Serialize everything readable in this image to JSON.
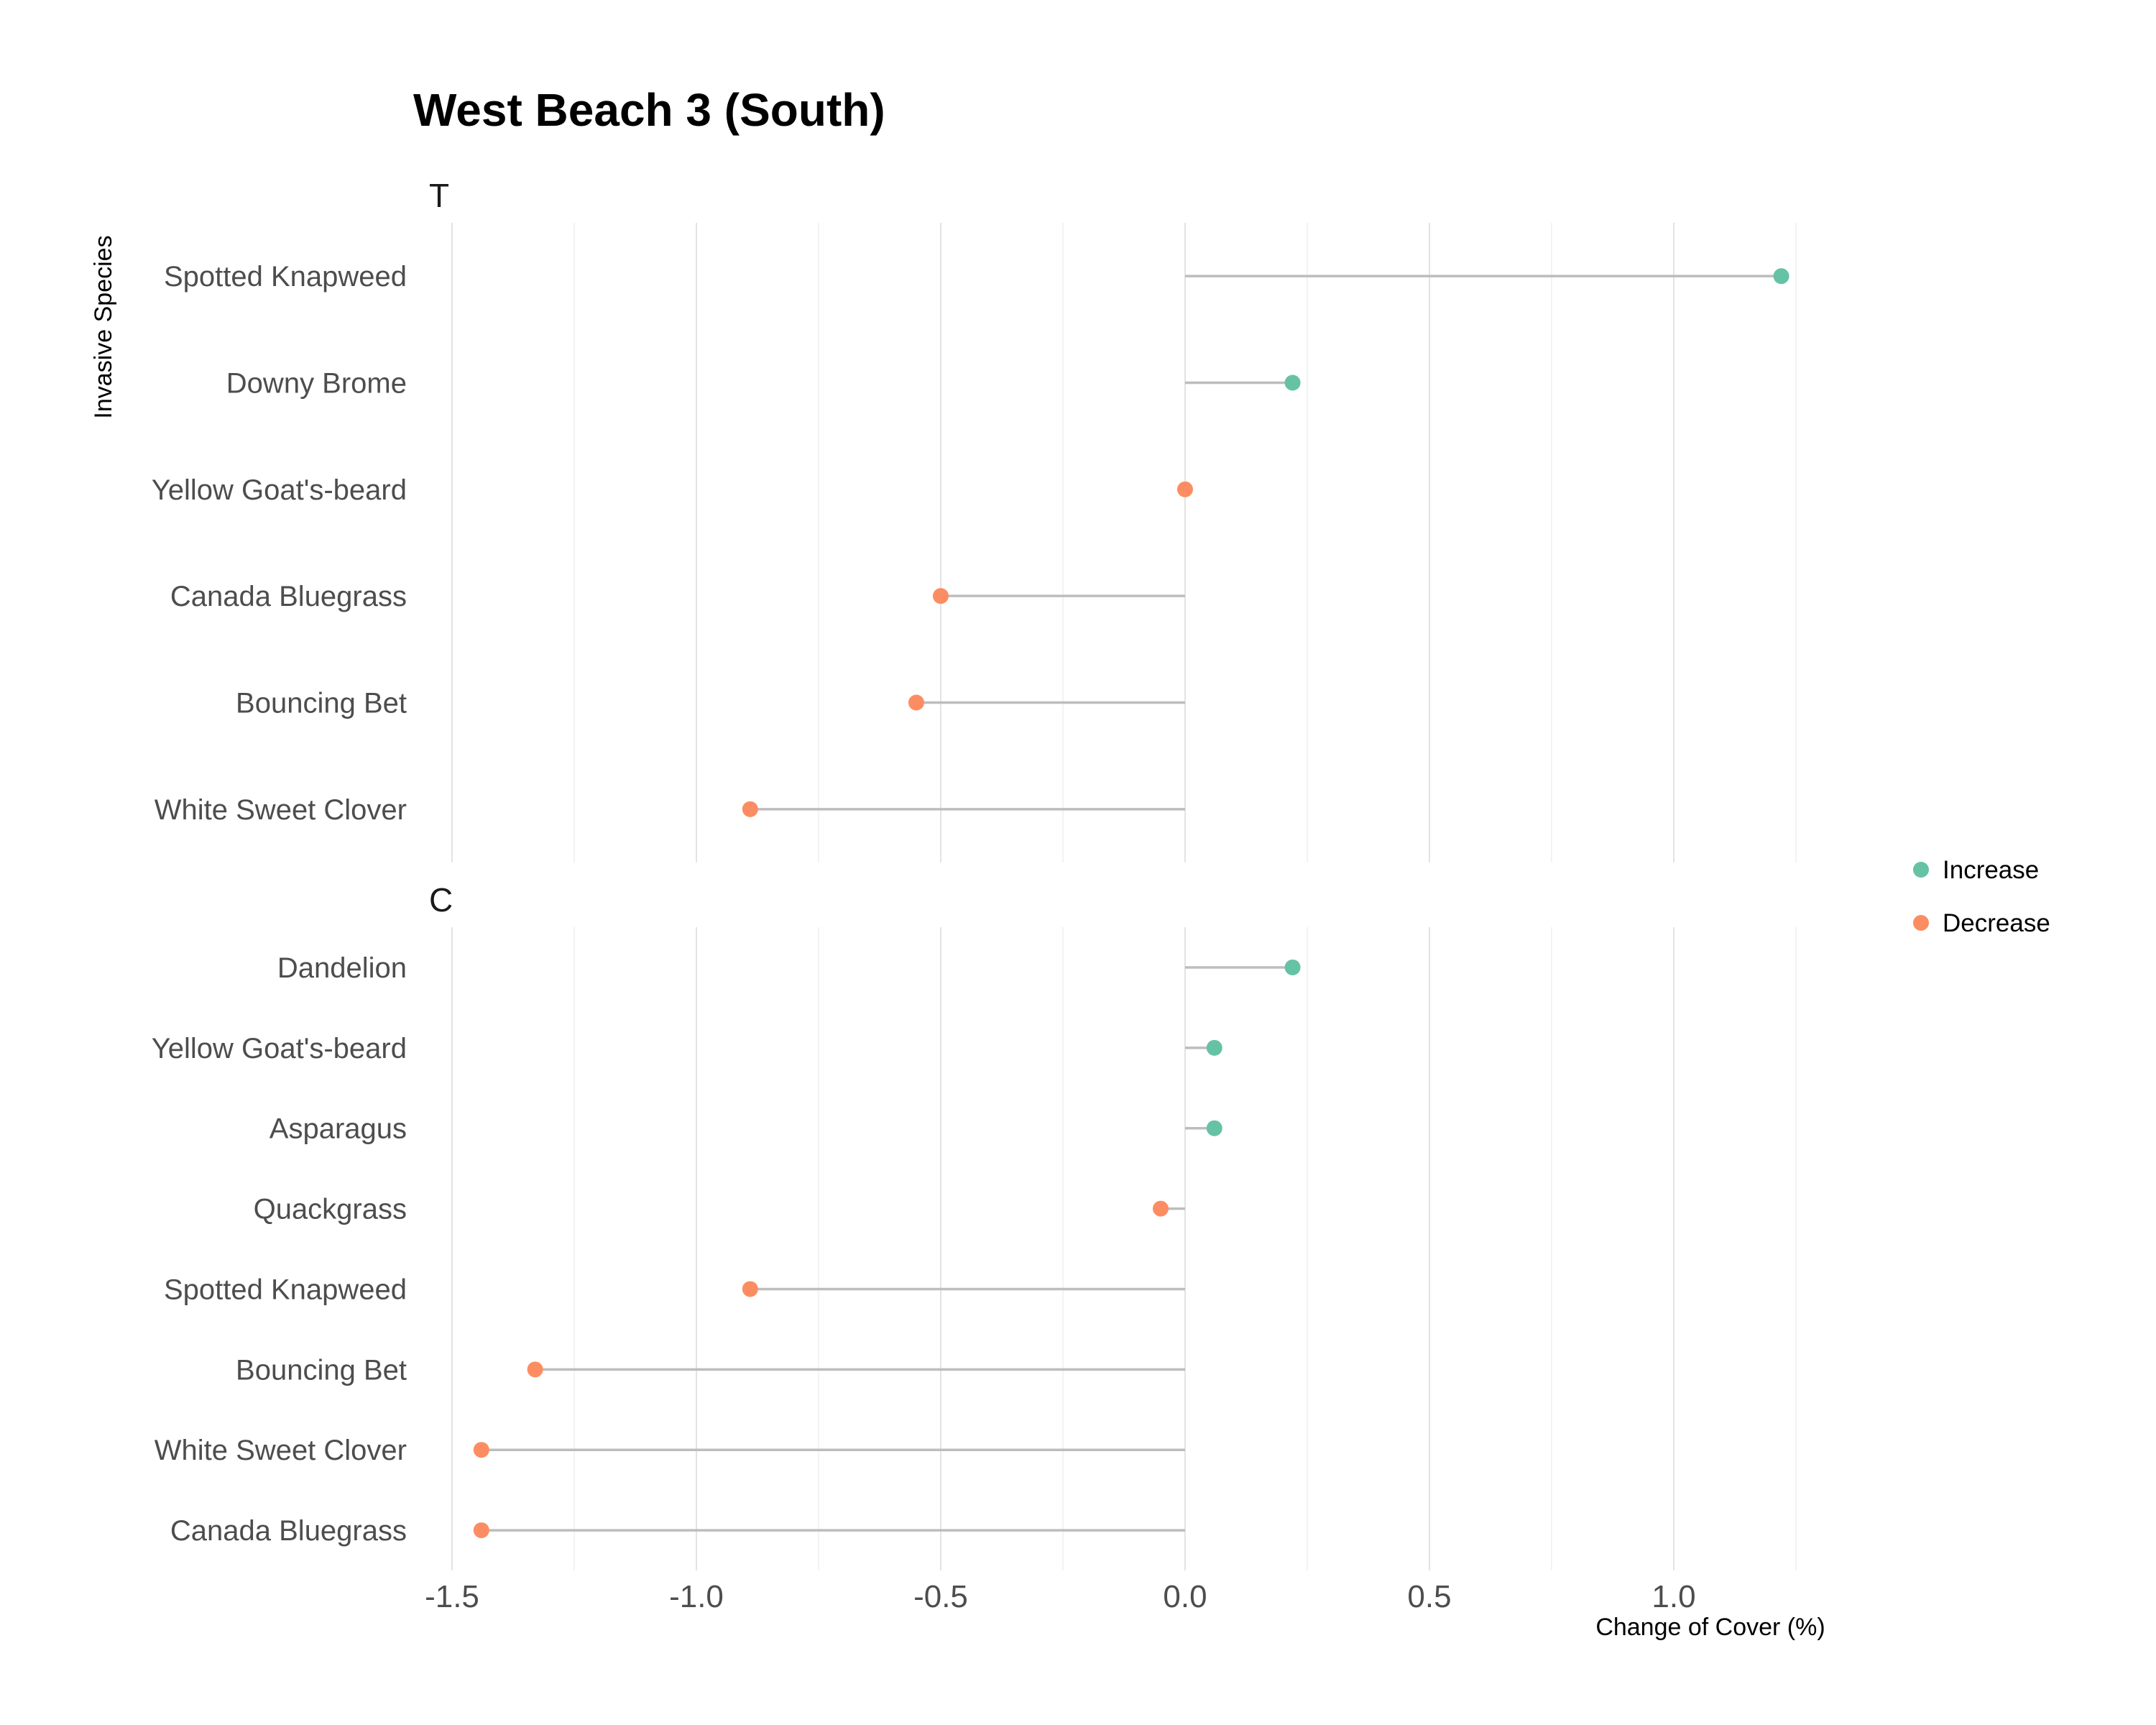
{
  "chart_data": {
    "type": "lollipop",
    "title": "West Beach 3 (South)",
    "xlabel": "Change of Cover (%)",
    "ylabel": "Invasive Species",
    "xlim": [
      -1.6,
      1.55
    ],
    "x_ticks": [
      -1.5,
      -1.0,
      -0.5,
      0.0,
      0.5,
      1.0
    ],
    "x_tick_labels": [
      "-1.5",
      "-1.0",
      "-0.5",
      "0.0",
      "0.5",
      "1.0"
    ],
    "grid": true,
    "legend": {
      "position": "right",
      "entries": [
        {
          "label": "Increase",
          "color": "#66c2a5"
        },
        {
          "label": "Decrease",
          "color": "#fc8d62"
        }
      ]
    },
    "facets": [
      {
        "label": "T",
        "categories": [
          "Spotted Knapweed",
          "Downy Brome",
          "Yellow Goat's-beard",
          "Canada Bluegrass",
          "Bouncing Bet",
          "White Sweet Clover"
        ],
        "values": [
          1.22,
          0.22,
          0.0,
          -0.5,
          -0.55,
          -0.89
        ],
        "direction": [
          "Increase",
          "Increase",
          "Decrease",
          "Decrease",
          "Decrease",
          "Decrease"
        ]
      },
      {
        "label": "C",
        "categories": [
          "Dandelion",
          "Yellow Goat's-beard",
          "Asparagus",
          "Quackgrass",
          "Spotted Knapweed",
          "Bouncing Bet",
          "White Sweet Clover",
          "Canada Bluegrass"
        ],
        "values": [
          0.22,
          0.06,
          0.06,
          -0.05,
          -0.89,
          -1.33,
          -1.44,
          -1.44
        ],
        "direction": [
          "Increase",
          "Increase",
          "Increase",
          "Decrease",
          "Decrease",
          "Decrease",
          "Decrease",
          "Decrease"
        ]
      }
    ]
  }
}
